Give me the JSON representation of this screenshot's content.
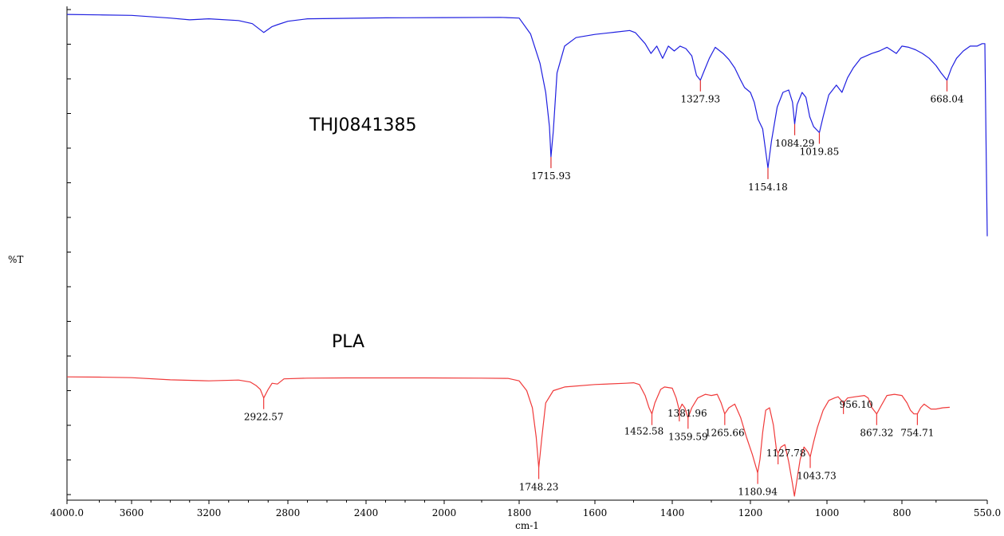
{
  "chart_data": {
    "type": "line",
    "xlabel": "cm-1",
    "ylabel": "%T",
    "xlim": [
      4000.0,
      550.0
    ],
    "x_reversed": true,
    "x_ticks": [
      4000.0,
      3600,
      3200,
      2800,
      2400,
      2000,
      1800,
      1600,
      1400,
      1200,
      1000,
      800,
      550.0
    ],
    "x_tick_labels": [
      "4000.0",
      "3600",
      "3200",
      "2800",
      "2400",
      "2000",
      "1800",
      "1600",
      "1400",
      "1200",
      "1000",
      "800",
      "550.0"
    ],
    "ylim": [
      0,
      100
    ],
    "y_tick_labels_shown": false,
    "grid": false,
    "series": [
      {
        "name": "THJ0841385",
        "color": "#1f1fe0",
        "label_color": "#e03030",
        "points": [
          [
            4000,
            98
          ],
          [
            3800,
            97.8
          ],
          [
            3600,
            97.6
          ],
          [
            3400,
            96.5
          ],
          [
            3300,
            95.8
          ],
          [
            3200,
            96.2
          ],
          [
            3050,
            95.5
          ],
          [
            2980,
            94.2
          ],
          [
            2922,
            90.6
          ],
          [
            2880,
            93
          ],
          [
            2853,
            93.8
          ],
          [
            2800,
            95.2
          ],
          [
            2700,
            96.2
          ],
          [
            2500,
            96.4
          ],
          [
            2300,
            96.6
          ],
          [
            2000,
            96.7
          ],
          [
            1850,
            96.8
          ],
          [
            1800,
            96.5
          ],
          [
            1770,
            90
          ],
          [
            1745,
            78
          ],
          [
            1730,
            66
          ],
          [
            1720,
            52
          ],
          [
            1715.93,
            39.5
          ],
          [
            1710,
            50
          ],
          [
            1700,
            74
          ],
          [
            1680,
            85
          ],
          [
            1650,
            88.5
          ],
          [
            1600,
            89.8
          ],
          [
            1550,
            90.7
          ],
          [
            1510,
            91.4
          ],
          [
            1495,
            90.5
          ],
          [
            1470,
            86
          ],
          [
            1455,
            82
          ],
          [
            1440,
            85
          ],
          [
            1425,
            80
          ],
          [
            1410,
            85
          ],
          [
            1395,
            83
          ],
          [
            1380,
            85
          ],
          [
            1365,
            84
          ],
          [
            1350,
            81
          ],
          [
            1338,
            73
          ],
          [
            1327.93,
            71
          ],
          [
            1318,
            75
          ],
          [
            1305,
            80
          ],
          [
            1290,
            84.5
          ],
          [
            1270,
            82
          ],
          [
            1255,
            79.5
          ],
          [
            1240,
            76
          ],
          [
            1225,
            71
          ],
          [
            1215,
            68
          ],
          [
            1200,
            66
          ],
          [
            1190,
            62
          ],
          [
            1180,
            55
          ],
          [
            1168,
            51
          ],
          [
            1154.18,
            35
          ],
          [
            1145,
            46
          ],
          [
            1130,
            60
          ],
          [
            1115,
            66
          ],
          [
            1100,
            67
          ],
          [
            1090,
            62
          ],
          [
            1084.29,
            53
          ],
          [
            1078,
            61
          ],
          [
            1065,
            66
          ],
          [
            1055,
            64
          ],
          [
            1045,
            56
          ],
          [
            1035,
            52
          ],
          [
            1019.85,
            49.5
          ],
          [
            1010,
            56
          ],
          [
            995,
            65
          ],
          [
            975,
            69
          ],
          [
            960,
            66
          ],
          [
            945,
            72
          ],
          [
            930,
            76
          ],
          [
            910,
            80
          ],
          [
            880,
            82
          ],
          [
            860,
            83
          ],
          [
            840,
            84.5
          ],
          [
            815,
            82
          ],
          [
            800,
            85
          ],
          [
            780,
            84.5
          ],
          [
            760,
            83.5
          ],
          [
            740,
            82
          ],
          [
            720,
            80
          ],
          [
            700,
            77
          ],
          [
            685,
            74
          ],
          [
            668.04,
            71
          ],
          [
            655,
            76
          ],
          [
            640,
            80
          ],
          [
            620,
            83
          ],
          [
            600,
            85
          ],
          [
            580,
            85
          ],
          [
            565,
            86
          ],
          [
            557,
            86
          ],
          [
            553,
            40
          ],
          [
            550,
            7
          ]
        ],
        "peaks": [
          {
            "x": 1715.93,
            "label": "1715.93"
          },
          {
            "x": 1327.93,
            "label": "1327.93"
          },
          {
            "x": 1154.18,
            "label": "1154.18"
          },
          {
            "x": 1084.29,
            "label": "1084.29"
          },
          {
            "x": 1019.85,
            "label": "1019.85"
          },
          {
            "x": 668.04,
            "label": "668.04"
          }
        ]
      },
      {
        "name": "PLA",
        "color": "#f03a3a",
        "label_color": "#f03a3a",
        "points": [
          [
            4000,
            49.6
          ],
          [
            3800,
            49.5
          ],
          [
            3600,
            49.3
          ],
          [
            3400,
            48.4
          ],
          [
            3200,
            48
          ],
          [
            3050,
            48.3
          ],
          [
            2990,
            47.5
          ],
          [
            2960,
            46
          ],
          [
            2940,
            44.5
          ],
          [
            2922.57,
            41
          ],
          [
            2900,
            44.5
          ],
          [
            2880,
            47
          ],
          [
            2853,
            46.7
          ],
          [
            2840,
            47.5
          ],
          [
            2820,
            48.8
          ],
          [
            2700,
            49.1
          ],
          [
            2500,
            49.2
          ],
          [
            2300,
            49.2
          ],
          [
            2100,
            49.2
          ],
          [
            1900,
            49.1
          ],
          [
            1830,
            49
          ],
          [
            1800,
            48
          ],
          [
            1780,
            44
          ],
          [
            1765,
            37
          ],
          [
            1755,
            25
          ],
          [
            1748.23,
            12.5
          ],
          [
            1740,
            25
          ],
          [
            1730,
            39
          ],
          [
            1710,
            44
          ],
          [
            1680,
            45.5
          ],
          [
            1600,
            46.5
          ],
          [
            1520,
            47
          ],
          [
            1500,
            47.2
          ],
          [
            1485,
            46.5
          ],
          [
            1470,
            42
          ],
          [
            1460,
            37
          ],
          [
            1452.58,
            34.5
          ],
          [
            1445,
            39
          ],
          [
            1430,
            44.5
          ],
          [
            1420,
            45.5
          ],
          [
            1400,
            45
          ],
          [
            1390,
            41
          ],
          [
            1381.96,
            36
          ],
          [
            1375,
            38.5
          ],
          [
            1368,
            37
          ],
          [
            1359.59,
            33
          ],
          [
            1350,
            37
          ],
          [
            1335,
            41
          ],
          [
            1315,
            42.5
          ],
          [
            1300,
            42
          ],
          [
            1285,
            42.5
          ],
          [
            1275,
            39
          ],
          [
            1265.66,
            34.5
          ],
          [
            1255,
            37
          ],
          [
            1240,
            38.5
          ],
          [
            1225,
            33
          ],
          [
            1210,
            25
          ],
          [
            1195,
            18
          ],
          [
            1180.94,
            10.5
          ],
          [
            1175,
            16
          ],
          [
            1168,
            27
          ],
          [
            1160,
            36
          ],
          [
            1150,
            37
          ],
          [
            1140,
            30
          ],
          [
            1132,
            20
          ],
          [
            1127.78,
            18.5
          ],
          [
            1120,
            21
          ],
          [
            1110,
            22
          ],
          [
            1100,
            15
          ],
          [
            1090,
            6
          ],
          [
            1085,
            1
          ],
          [
            1080,
            6
          ],
          [
            1070,
            16
          ],
          [
            1060,
            21
          ],
          [
            1050,
            19
          ],
          [
            1043.73,
            17
          ],
          [
            1035,
            23
          ],
          [
            1025,
            29
          ],
          [
            1010,
            36
          ],
          [
            995,
            40
          ],
          [
            980,
            41
          ],
          [
            970,
            41.5
          ],
          [
            956.1,
            39
          ],
          [
            945,
            41
          ],
          [
            925,
            41.5
          ],
          [
            900,
            42
          ],
          [
            890,
            41
          ],
          [
            880,
            37
          ],
          [
            867.32,
            34.5
          ],
          [
            855,
            38
          ],
          [
            840,
            42
          ],
          [
            820,
            42.5
          ],
          [
            800,
            42
          ],
          [
            785,
            39
          ],
          [
            775,
            36
          ],
          [
            765,
            34.5
          ],
          [
            754.71,
            34.5
          ],
          [
            745,
            37
          ],
          [
            735,
            38.5
          ],
          [
            725,
            37.5
          ],
          [
            715,
            36.5
          ],
          [
            700,
            36.5
          ],
          [
            680,
            37
          ],
          [
            660,
            37.2
          ]
        ],
        "peaks": [
          {
            "x": 2922.57,
            "label": "2922.57"
          },
          {
            "x": 1748.23,
            "label": "1748.23"
          },
          {
            "x": 1452.58,
            "label": "1452.58"
          },
          {
            "x": 1381.96,
            "label": "1381.96"
          },
          {
            "x": 1359.59,
            "label": "1359.59"
          },
          {
            "x": 1265.66,
            "label": "1265.66"
          },
          {
            "x": 1180.94,
            "label": "1180.94"
          },
          {
            "x": 1127.78,
            "label": "1127.78"
          },
          {
            "x": 1043.73,
            "label": "1043.73"
          },
          {
            "x": 956.1,
            "label": "956.10"
          },
          {
            "x": 867.32,
            "label": "867.32"
          },
          {
            "x": 754.71,
            "label": "754.71"
          }
        ]
      }
    ]
  }
}
